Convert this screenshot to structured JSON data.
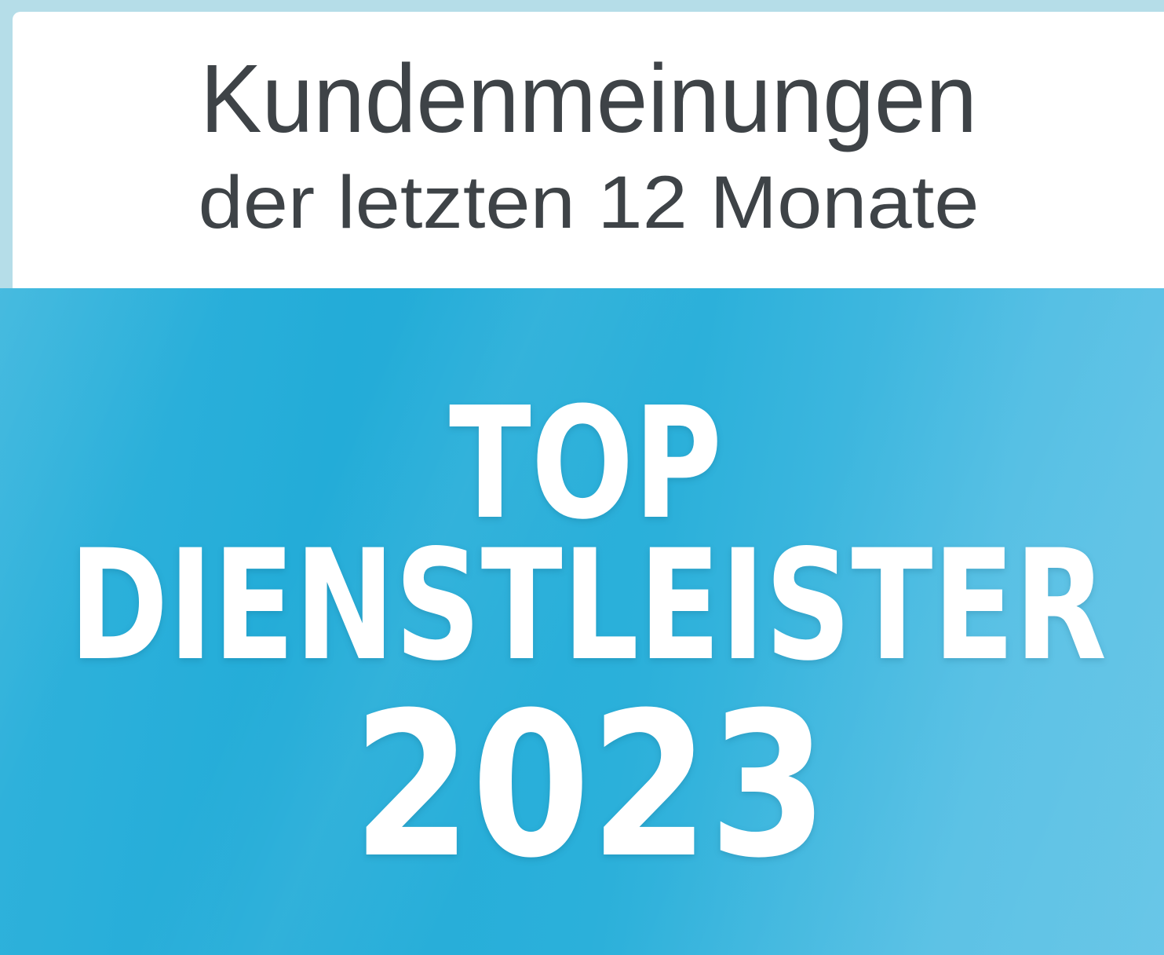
{
  "badge": {
    "header": {
      "line1": "Kundenmeinungen",
      "line2": "der letzten 12 Monate"
    },
    "award": {
      "line1": "TOP",
      "line2": "DIENSTLEISTER",
      "year": "2023"
    },
    "colors": {
      "header_text": "#3E4347",
      "pale_blue_border": "#B5DDE8",
      "white_panel": "#FFFFFF",
      "blue_dark": "#23ACD8",
      "blue_light": "#58C0E5",
      "award_text": "#FFFFFF"
    }
  }
}
